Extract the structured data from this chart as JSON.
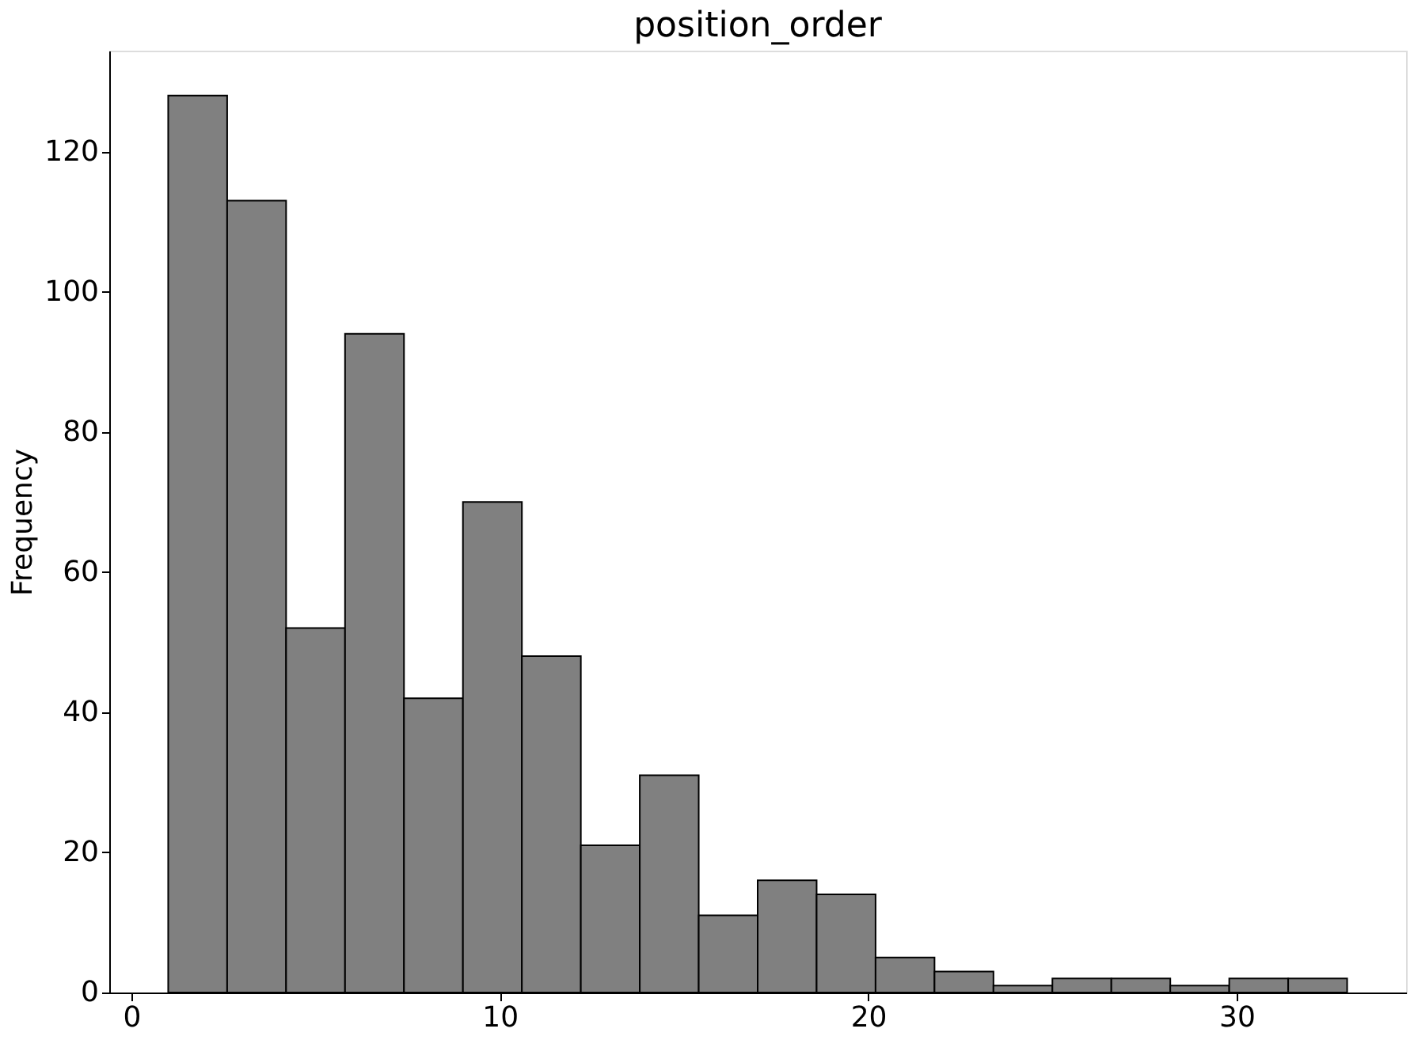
{
  "chart_data": {
    "type": "histogram",
    "title": "position_order",
    "ylabel": "Frequency",
    "bins": [
      1,
      2.6,
      4.2,
      5.8,
      7.4,
      9,
      10.6,
      12.2,
      13.8,
      15.4,
      17,
      18.6,
      20.2,
      21.8,
      23.4,
      25,
      26.6,
      28.2,
      29.8,
      31.4,
      33
    ],
    "values": [
      128,
      113,
      52,
      94,
      42,
      70,
      48,
      21,
      31,
      11,
      16,
      14,
      5,
      3,
      1,
      2,
      2,
      1,
      2,
      2
    ],
    "color": "#808080",
    "xlim": [
      -0.6,
      34.6
    ],
    "xticks": [
      0,
      10,
      20,
      30
    ],
    "ylim": [
      0,
      134.4
    ],
    "yticks": [
      0,
      20,
      40,
      60,
      80,
      100,
      120
    ],
    "grid": false
  }
}
